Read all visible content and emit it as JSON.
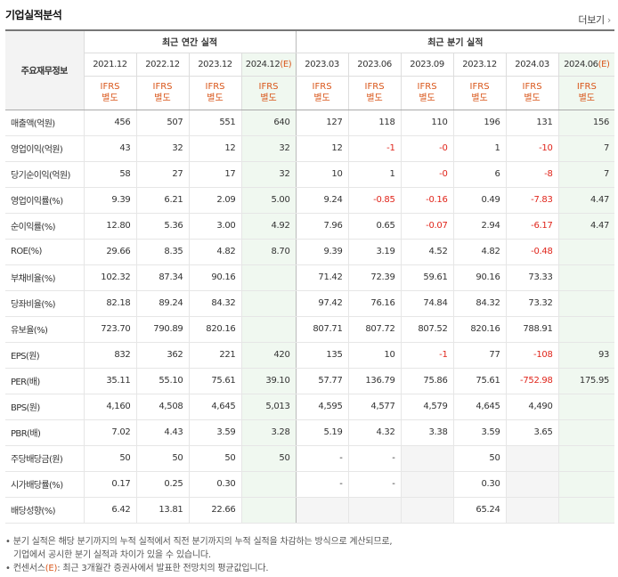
{
  "title": "기업실적분석",
  "more_label": "더보기",
  "header": {
    "row_label": "주요재무정보",
    "annual_group": "최근 연간 실적",
    "quarter_group": "최근 분기 실적",
    "estimate_mark": "(E)",
    "ifrs_line1": "IFRS",
    "ifrs_line2": "별도",
    "annual_periods": [
      "2021.12",
      "2022.12",
      "2023.12",
      "2024.12"
    ],
    "quarter_periods": [
      "2023.03",
      "2023.06",
      "2023.09",
      "2023.12",
      "2024.03",
      "2024.06"
    ]
  },
  "rows": [
    {
      "label": "매출액(억원)",
      "values": [
        "456",
        "507",
        "551",
        "640",
        "127",
        "118",
        "110",
        "196",
        "131",
        "156"
      ]
    },
    {
      "label": "영업이익(억원)",
      "values": [
        "43",
        "32",
        "12",
        "32",
        "12",
        "-1",
        "-0",
        "1",
        "-10",
        "7"
      ]
    },
    {
      "label": "당기순이익(억원)",
      "values": [
        "58",
        "27",
        "17",
        "32",
        "10",
        "1",
        "-0",
        "6",
        "-8",
        "7"
      ]
    },
    {
      "label": "영업이익률(%)",
      "values": [
        "9.39",
        "6.21",
        "2.09",
        "5.00",
        "9.24",
        "-0.85",
        "-0.16",
        "0.49",
        "-7.83",
        "4.47"
      ]
    },
    {
      "label": "순이익률(%)",
      "values": [
        "12.80",
        "5.36",
        "3.00",
        "4.92",
        "7.96",
        "0.65",
        "-0.07",
        "2.94",
        "-6.17",
        "4.47"
      ]
    },
    {
      "label": "ROE(%)",
      "values": [
        "29.66",
        "8.35",
        "4.82",
        "8.70",
        "9.39",
        "3.19",
        "4.52",
        "4.82",
        "-0.48",
        ""
      ]
    },
    {
      "label": "부채비율(%)",
      "values": [
        "102.32",
        "87.34",
        "90.16",
        "",
        "71.42",
        "72.39",
        "59.61",
        "90.16",
        "73.33",
        ""
      ]
    },
    {
      "label": "당좌비율(%)",
      "values": [
        "82.18",
        "89.24",
        "84.32",
        "",
        "97.42",
        "76.16",
        "74.84",
        "84.32",
        "73.32",
        ""
      ]
    },
    {
      "label": "유보율(%)",
      "values": [
        "723.70",
        "790.89",
        "820.16",
        "",
        "807.71",
        "807.72",
        "807.52",
        "820.16",
        "788.91",
        ""
      ]
    },
    {
      "label": "EPS(원)",
      "values": [
        "832",
        "362",
        "221",
        "420",
        "135",
        "10",
        "-1",
        "77",
        "-108",
        "93"
      ]
    },
    {
      "label": "PER(배)",
      "values": [
        "35.11",
        "55.10",
        "75.61",
        "39.10",
        "57.77",
        "136.79",
        "75.86",
        "75.61",
        "-752.98",
        "175.95"
      ]
    },
    {
      "label": "BPS(원)",
      "values": [
        "4,160",
        "4,508",
        "4,645",
        "5,013",
        "4,595",
        "4,577",
        "4,579",
        "4,645",
        "4,490",
        ""
      ]
    },
    {
      "label": "PBR(배)",
      "values": [
        "7.02",
        "4.43",
        "3.59",
        "3.28",
        "5.19",
        "4.32",
        "3.38",
        "3.59",
        "3.65",
        ""
      ]
    },
    {
      "label": "주당배당금(원)",
      "values": [
        "50",
        "50",
        "50",
        "50",
        "-",
        "-",
        "",
        "50",
        "",
        ""
      ]
    },
    {
      "label": "시가배당률(%)",
      "values": [
        "0.17",
        "0.25",
        "0.30",
        "",
        "-",
        "-",
        "",
        "0.30",
        "",
        ""
      ]
    },
    {
      "label": "배당성향(%)",
      "values": [
        "6.42",
        "13.81",
        "22.66",
        "",
        "",
        "",
        "",
        "65.24",
        "",
        ""
      ]
    }
  ],
  "notes": {
    "line1": "분기 실적은 해당 분기까지의 누적 실적에서 직전 분기까지의 누적 실적을 차감하는 방식으로 계산되므로,",
    "line2": "기업에서 공시한 분기 실적과 차이가 있을 수 있습니다.",
    "line3_prefix": "컨센서스",
    "line3_mark": "(E)",
    "line3_suffix": ": 최근 3개월간 증권사에서 발표한 전망치의 평균값입니다."
  },
  "colors": {
    "estimate_bg": "#f0f8f0",
    "ifrs_text": "#d9561a",
    "negative": "#e0251b",
    "empty_bg": "#f5f5f5"
  }
}
